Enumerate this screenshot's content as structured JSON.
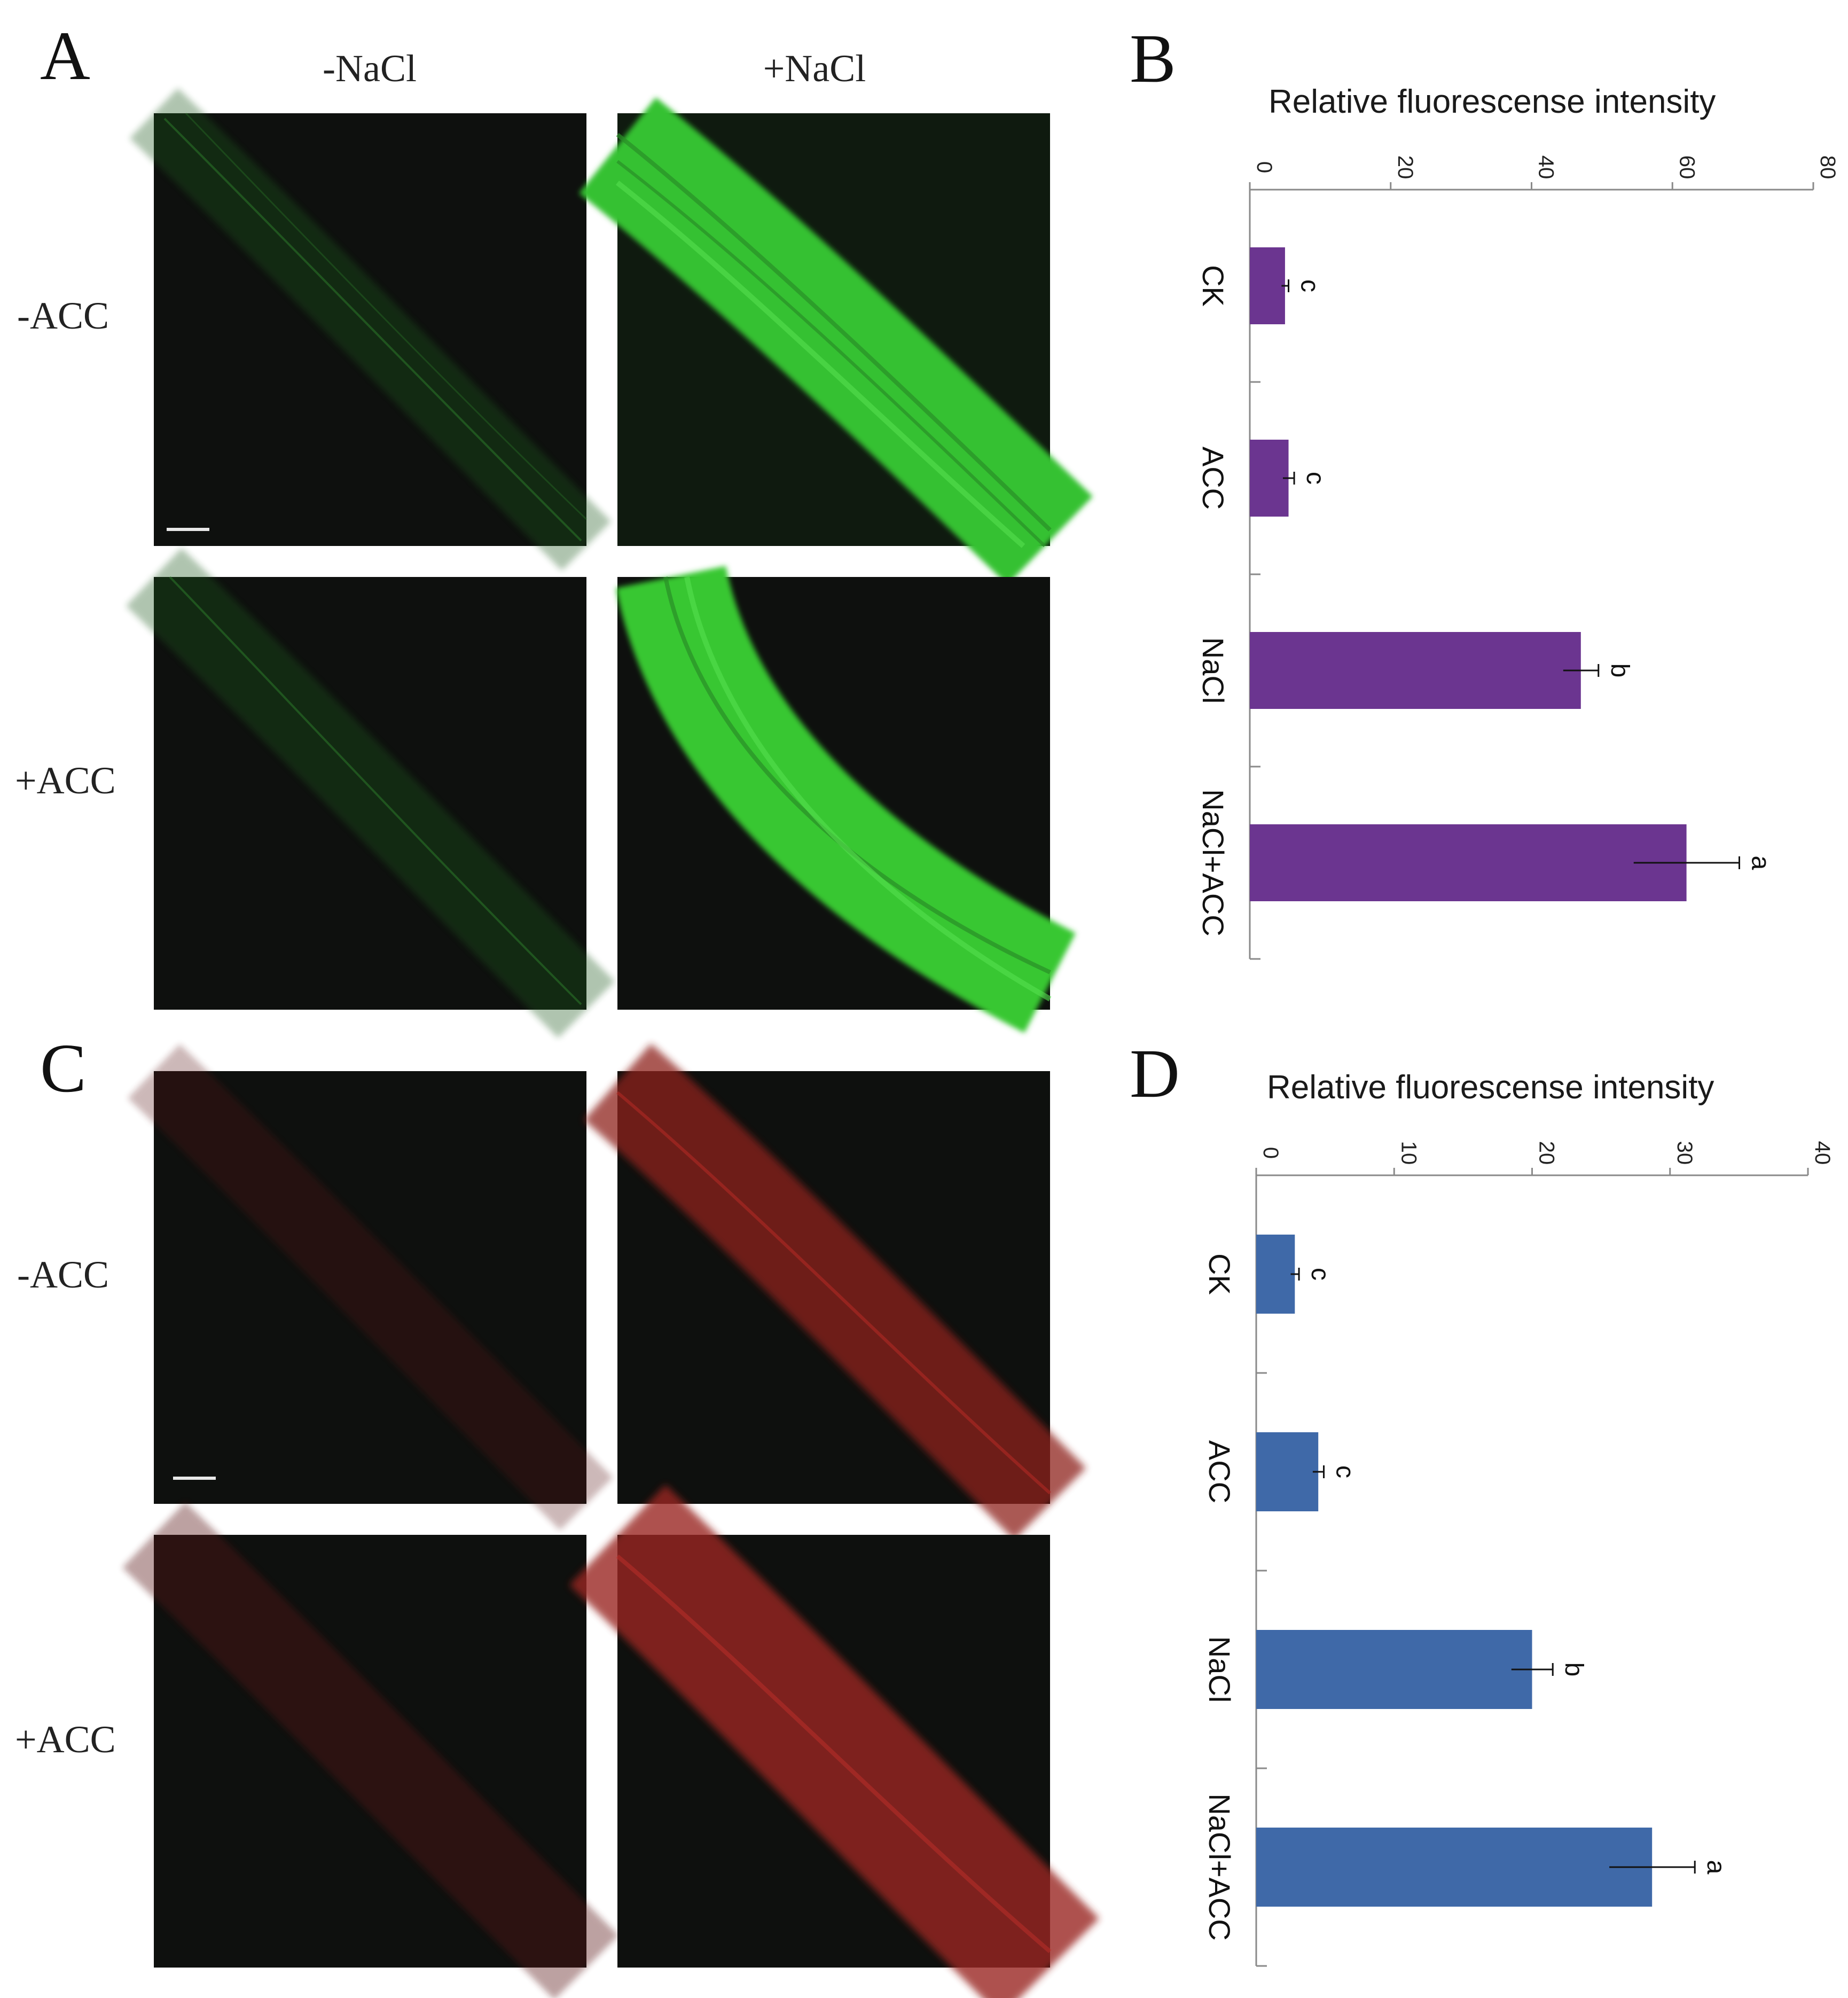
{
  "figure": {
    "panel_a": "A",
    "panel_b": "B",
    "panel_c": "C",
    "panel_d": "D",
    "col_minus_nacl": "-NaCl",
    "col_plus_nacl": "+NaCl",
    "row_minus_acc": "-ACC",
    "row_plus_acc": "+ACC",
    "row_minus_acc_c": "-ACC",
    "row_plus_acc_c": "+ACC"
  },
  "colors": {
    "bar_b": "#6b3590",
    "bar_d": "#3f69a8",
    "green_strong": "#3fd13a",
    "green_faint": "#1f5a1e",
    "red_strong": "#b02a24",
    "red_faint": "#5a1614"
  },
  "chart_data": [
    {
      "type": "bar",
      "panel": "B",
      "title": "Relative fluorescense intensity",
      "categories": [
        "CK",
        "ACC",
        "NaCl",
        "NaCl+ACC"
      ],
      "values": [
        5,
        5.5,
        47,
        62
      ],
      "errors": [
        0.5,
        0.8,
        2.5,
        7.5
      ],
      "significance": [
        "c",
        "c",
        "b",
        "a"
      ],
      "ticks": [
        0,
        20,
        40,
        60,
        80
      ],
      "tick_labels": [
        "0",
        "20",
        "40",
        "60",
        "80"
      ],
      "ylim": [
        0,
        80
      ],
      "orientation": "rotated-90"
    },
    {
      "type": "bar",
      "panel": "D",
      "title": "Relative fluorescense intensity",
      "categories": [
        "CK",
        "ACC",
        "NaCl",
        "NaCl+ACC"
      ],
      "values": [
        2.8,
        4.5,
        20,
        28.7
      ],
      "errors": [
        0.3,
        0.4,
        1.5,
        3.1
      ],
      "significance": [
        "c",
        "c",
        "b",
        "a"
      ],
      "ticks": [
        0,
        10,
        20,
        30,
        40
      ],
      "tick_labels": [
        "0",
        "10",
        "20",
        "30",
        "40"
      ],
      "ylim": [
        0,
        40
      ],
      "orientation": "rotated-90"
    }
  ]
}
